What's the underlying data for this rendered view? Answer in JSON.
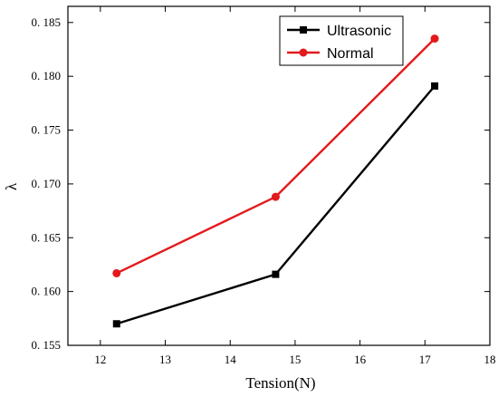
{
  "chart_data": {
    "type": "line",
    "xlabel": "Tension(N)",
    "ylabel": "λ",
    "xlim": [
      11.5,
      18
    ],
    "ylim": [
      0.155,
      0.1865
    ],
    "x_ticks": [
      12,
      13,
      14,
      15,
      16,
      17,
      18
    ],
    "y_ticks": [
      0.155,
      0.16,
      0.165,
      0.17,
      0.175,
      0.18,
      0.185
    ],
    "x_tick_labels": [
      "12",
      "13",
      "14",
      "15",
      "16",
      "17",
      "18"
    ],
    "y_tick_labels": [
      "0. 155",
      "0. 160",
      "0. 165",
      "0. 170",
      "0. 175",
      "0. 180",
      "0. 185"
    ],
    "legend_position": "top-right",
    "grid": false,
    "series": [
      {
        "name": "Ultrasonic",
        "color": "#000000",
        "marker": "square",
        "x": [
          12.25,
          14.7,
          17.15
        ],
        "values": [
          0.157,
          0.1616,
          0.1791
        ]
      },
      {
        "name": "Normal",
        "color": "#e31a1c",
        "marker": "circle",
        "x": [
          12.25,
          14.7,
          17.15
        ],
        "values": [
          0.1617,
          0.1688,
          0.1835
        ]
      }
    ]
  }
}
